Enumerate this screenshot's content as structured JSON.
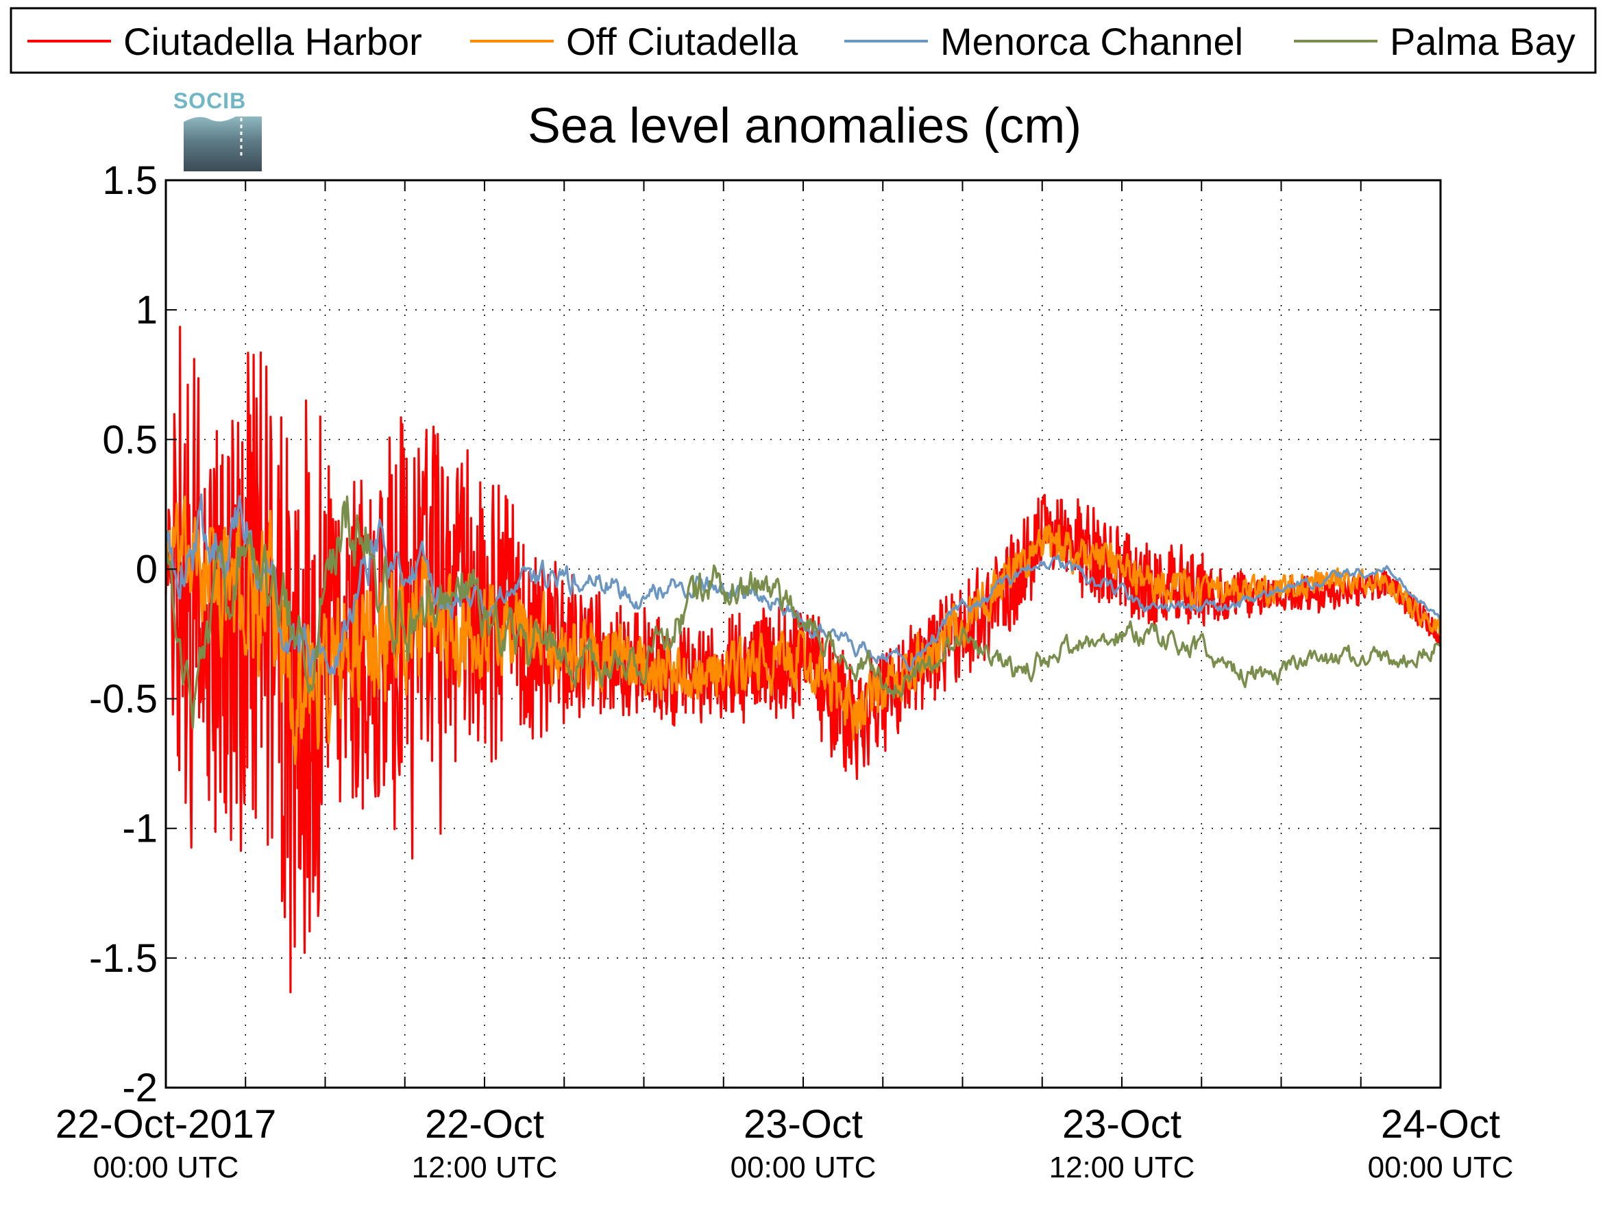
{
  "chart_data": {
    "type": "line",
    "title": "Sea level anomalies (cm)",
    "xlabel": "",
    "ylabel": "",
    "ylim": [
      -2,
      1.5
    ],
    "xlim_hours": [
      0,
      48
    ],
    "yticks": [
      "1.5",
      "1",
      "0.5",
      "0",
      "-0.5",
      "-1",
      "-1.5",
      "-2"
    ],
    "ytick_values": [
      1.5,
      1,
      0.5,
      0,
      -0.5,
      -1,
      -1.5,
      -2
    ],
    "xticks": [
      {
        "date": "22-Oct-2017",
        "time": "00:00 UTC"
      },
      {
        "date": "22-Oct",
        "time": "12:00 UTC"
      },
      {
        "date": "23-Oct",
        "time": "00:00 UTC"
      },
      {
        "date": "23-Oct",
        "time": "12:00 UTC"
      },
      {
        "date": "24-Oct",
        "time": "00:00 UTC"
      }
    ],
    "grid": true,
    "legend_position": "top",
    "logo_text": "SOCIB",
    "series": [
      {
        "name": "Ciutadella Harbor",
        "color": "#ff0000",
        "amplitude": [
          [
            0,
            0.1
          ],
          [
            0.5,
            1.0
          ],
          [
            3,
            1.05
          ],
          [
            5.5,
            1.25
          ],
          [
            6.5,
            0.75
          ],
          [
            9,
            0.95
          ],
          [
            12,
            0.6
          ],
          [
            15,
            0.3
          ],
          [
            20,
            0.2
          ],
          [
            25,
            0.25
          ],
          [
            28,
            0.2
          ],
          [
            33,
            0.2
          ],
          [
            38,
            0.18
          ],
          [
            41,
            0.08
          ],
          [
            48,
            0.05
          ]
        ],
        "baseline": [
          [
            0,
            0.0
          ],
          [
            1,
            -0.1
          ],
          [
            2,
            -0.25
          ],
          [
            4,
            -0.2
          ],
          [
            5,
            -0.6
          ],
          [
            6,
            -0.45
          ],
          [
            9,
            -0.25
          ],
          [
            12,
            -0.2
          ],
          [
            15,
            -0.3
          ],
          [
            17,
            -0.35
          ],
          [
            20,
            -0.4
          ],
          [
            24,
            -0.35
          ],
          [
            26,
            -0.6
          ],
          [
            28,
            -0.4
          ],
          [
            30,
            -0.25
          ],
          [
            32,
            -0.05
          ],
          [
            33,
            0.15
          ],
          [
            35,
            0.05
          ],
          [
            37,
            -0.05
          ],
          [
            40,
            -0.1
          ],
          [
            44,
            -0.1
          ],
          [
            46,
            -0.05
          ],
          [
            48,
            -0.25
          ]
        ]
      },
      {
        "name": "Off Ciutadella",
        "color": "#ff8c00",
        "amplitude": [
          [
            0,
            0.15
          ],
          [
            3,
            0.3
          ],
          [
            6,
            0.3
          ],
          [
            9,
            0.25
          ],
          [
            12,
            0.2
          ],
          [
            15,
            0.15
          ],
          [
            20,
            0.1
          ],
          [
            25,
            0.12
          ],
          [
            30,
            0.1
          ],
          [
            35,
            0.08
          ],
          [
            40,
            0.06
          ],
          [
            48,
            0.04
          ]
        ],
        "baseline": [
          [
            0,
            0.1
          ],
          [
            2,
            -0.05
          ],
          [
            4,
            -0.15
          ],
          [
            5,
            -0.45
          ],
          [
            6,
            -0.4
          ],
          [
            9,
            -0.2
          ],
          [
            12,
            -0.2
          ],
          [
            15,
            -0.3
          ],
          [
            17,
            -0.35
          ],
          [
            20,
            -0.4
          ],
          [
            24,
            -0.35
          ],
          [
            26,
            -0.55
          ],
          [
            28,
            -0.4
          ],
          [
            30,
            -0.2
          ],
          [
            32,
            0.0
          ],
          [
            33,
            0.1
          ],
          [
            35,
            0.05
          ],
          [
            37,
            -0.05
          ],
          [
            40,
            -0.1
          ],
          [
            44,
            -0.05
          ],
          [
            46,
            -0.05
          ],
          [
            48,
            -0.25
          ]
        ]
      },
      {
        "name": "Menorca Channel",
        "color": "#6a96c4",
        "amplitude": [
          [
            0,
            0.15
          ],
          [
            4,
            0.15
          ],
          [
            8,
            0.12
          ],
          [
            12,
            0.08
          ],
          [
            20,
            0.05
          ],
          [
            30,
            0.04
          ],
          [
            40,
            0.03
          ],
          [
            48,
            0.02
          ]
        ],
        "baseline": [
          [
            0,
            0.05
          ],
          [
            2,
            0.15
          ],
          [
            3,
            0.15
          ],
          [
            5,
            -0.3
          ],
          [
            6,
            -0.35
          ],
          [
            8,
            0.15
          ],
          [
            9,
            0.0
          ],
          [
            12,
            -0.15
          ],
          [
            14,
            -0.05
          ],
          [
            16,
            -0.05
          ],
          [
            18,
            -0.1
          ],
          [
            20,
            -0.05
          ],
          [
            22,
            -0.1
          ],
          [
            24,
            -0.2
          ],
          [
            26,
            -0.3
          ],
          [
            28,
            -0.35
          ],
          [
            30,
            -0.15
          ],
          [
            32,
            -0.05
          ],
          [
            33,
            0.05
          ],
          [
            35,
            -0.05
          ],
          [
            37,
            -0.15
          ],
          [
            40,
            -0.15
          ],
          [
            43,
            -0.05
          ],
          [
            46,
            0.0
          ],
          [
            48,
            -0.2
          ]
        ]
      },
      {
        "name": "Palma Bay",
        "color": "#7a8e4c",
        "amplitude": [
          [
            0,
            0.1
          ],
          [
            3,
            0.2
          ],
          [
            6,
            0.2
          ],
          [
            9,
            0.2
          ],
          [
            12,
            0.15
          ],
          [
            16,
            0.1
          ],
          [
            20,
            0.12
          ],
          [
            24,
            0.08
          ],
          [
            30,
            0.06
          ],
          [
            36,
            0.06
          ],
          [
            40,
            0.06
          ],
          [
            48,
            0.05
          ]
        ],
        "baseline": [
          [
            0,
            0.05
          ],
          [
            1,
            -0.55
          ],
          [
            2,
            -0.1
          ],
          [
            3,
            0.1
          ],
          [
            5,
            -0.3
          ],
          [
            7,
            0.2
          ],
          [
            9,
            -0.2
          ],
          [
            11,
            0.0
          ],
          [
            12,
            -0.2
          ],
          [
            14,
            -0.3
          ],
          [
            16,
            -0.35
          ],
          [
            18,
            -0.35
          ],
          [
            20,
            -0.1
          ],
          [
            22,
            -0.05
          ],
          [
            24,
            -0.2
          ],
          [
            26,
            -0.35
          ],
          [
            28,
            -0.45
          ],
          [
            30,
            -0.25
          ],
          [
            32,
            -0.4
          ],
          [
            34,
            -0.3
          ],
          [
            36,
            -0.25
          ],
          [
            38,
            -0.25
          ],
          [
            40,
            -0.4
          ],
          [
            42,
            -0.4
          ],
          [
            44,
            -0.35
          ],
          [
            46,
            -0.35
          ],
          [
            48,
            -0.3
          ]
        ]
      }
    ]
  }
}
